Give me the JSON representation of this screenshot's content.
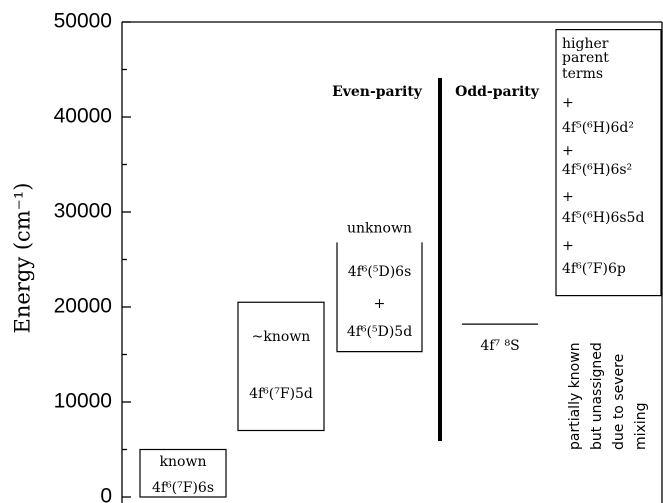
{
  "chart_data": {
    "type": "levels",
    "y_label": "Energy (cm⁻¹)",
    "ylim": [
      0,
      50000
    ],
    "yticks": [
      0,
      10000,
      20000,
      30000,
      40000,
      50000
    ],
    "minor_yticks": [
      5000,
      15000,
      25000,
      35000,
      45000
    ],
    "boxes": [
      {
        "lines": [
          "known",
          "4f⁶(⁷F)6s"
        ],
        "low": 0,
        "high": 5000
      },
      {
        "lines": [
          "~known",
          "4f⁶(⁷F)5d"
        ],
        "low": 7000,
        "high": 20500
      },
      {
        "title": "unknown",
        "lines": [
          "4f⁶(⁵D)6s",
          "+",
          "4f⁶(⁵D)5d"
        ],
        "low": 15300,
        "high": 26800
      },
      {
        "lines": [
          "higher",
          "parent",
          "terms",
          "+",
          "4f⁵(⁶H)6d²",
          "+",
          "4f⁵(⁶H)6s²",
          "+",
          "4f⁵(⁶H)6s5d",
          "+",
          "4f⁶(⁷F)6p"
        ],
        "low": 21200,
        "high": 49200
      }
    ],
    "divider": {
      "low": 5900,
      "high": 44100
    },
    "left_heading": "Even-parity",
    "right_heading": "Odd-parity",
    "level": {
      "label": "4f⁷ ⁸S",
      "value": 18200
    },
    "note": [
      "partially known",
      "but unassigned",
      "due to severe",
      "mixing"
    ]
  }
}
